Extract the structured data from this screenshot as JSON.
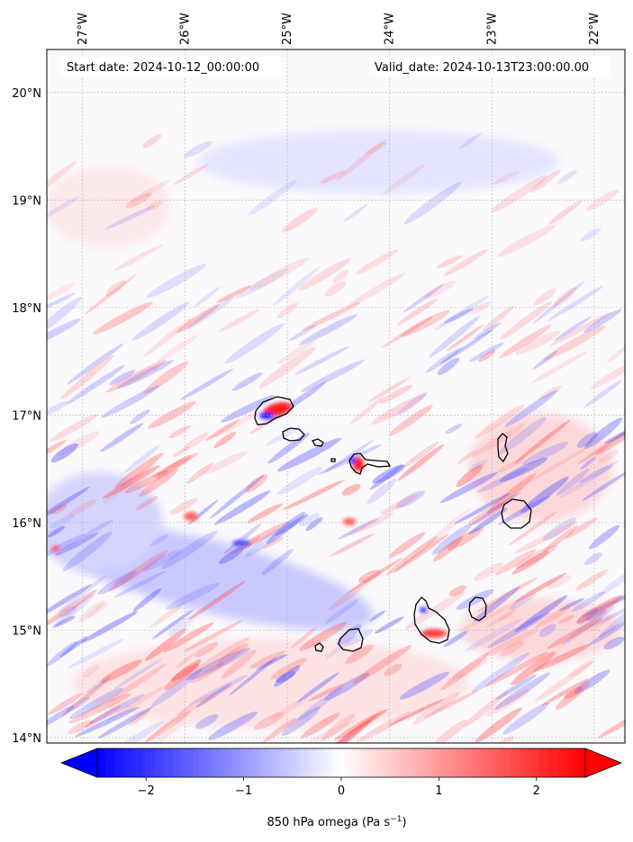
{
  "map": {
    "start_label": "Start date: 2024-10-12_00:00:00",
    "valid_label": "Valid_date: 2024-10-13T23:00:00.00",
    "lon_range": [
      -27.35,
      -21.7
    ],
    "lat_range": [
      13.95,
      20.4
    ],
    "lon_ticks": [
      {
        "value": -27,
        "label": "27°W"
      },
      {
        "value": -26,
        "label": "26°W"
      },
      {
        "value": -25,
        "label": "25°W"
      },
      {
        "value": -24,
        "label": "24°W"
      },
      {
        "value": -23,
        "label": "23°W"
      },
      {
        "value": -22,
        "label": "22°W"
      }
    ],
    "lat_ticks": [
      {
        "value": 20,
        "label": "20°N"
      },
      {
        "value": 19,
        "label": "19°N"
      },
      {
        "value": 18,
        "label": "18°N"
      },
      {
        "value": 17,
        "label": "17°N"
      },
      {
        "value": 16,
        "label": "16°N"
      },
      {
        "value": 15,
        "label": "15°N"
      },
      {
        "value": 14,
        "label": "14°N"
      }
    ],
    "gridlines": true
  },
  "colorbar": {
    "label": "850 hPa omega (Pa s",
    "label_sup": "−1",
    "label_close": ")",
    "range": [
      -2.5,
      2.5
    ],
    "ticks": [
      {
        "value": -2,
        "label": "−2"
      },
      {
        "value": -1,
        "label": "−1"
      },
      {
        "value": 0,
        "label": "0"
      },
      {
        "value": 1,
        "label": "1"
      },
      {
        "value": 2,
        "label": "2"
      }
    ],
    "low_color": "#0000ff",
    "mid_color": "#ffffff",
    "high_color": "#ff0000",
    "extend": "both"
  },
  "chart_data": {
    "type": "heatmap",
    "variable": "850 hPa omega",
    "units": "Pa s-1",
    "colormap": "bwr",
    "vmin": -2.5,
    "vmax": 2.5
  }
}
